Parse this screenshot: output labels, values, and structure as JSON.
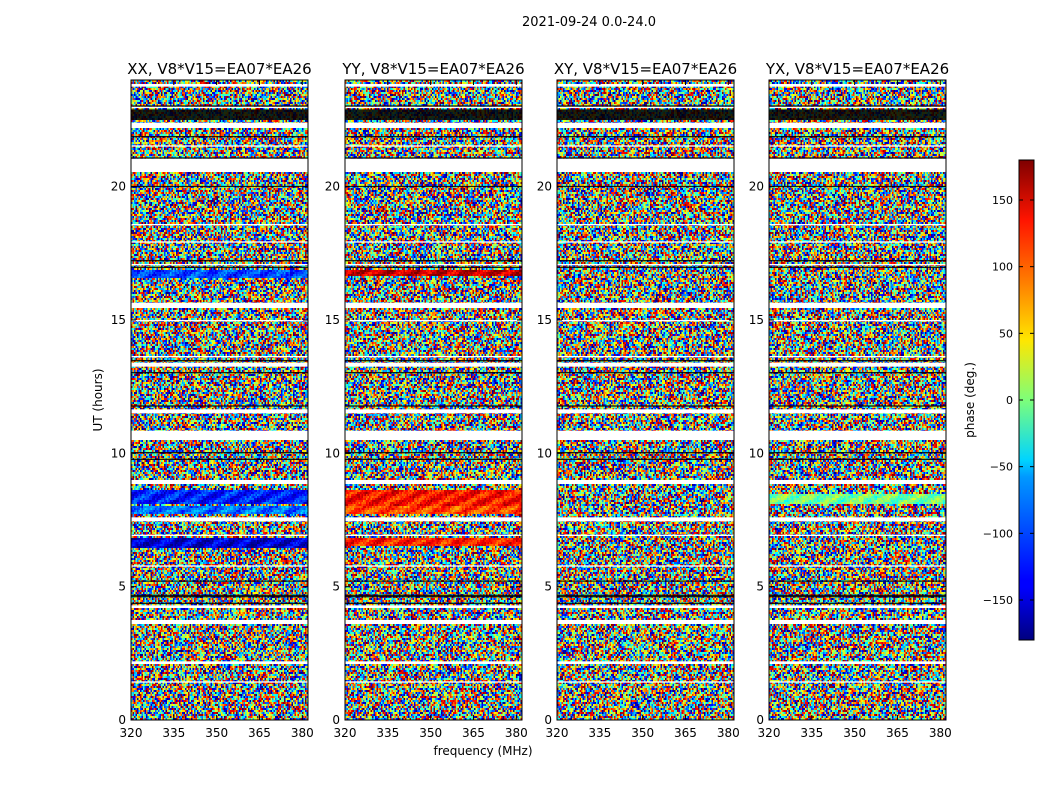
{
  "chart_data": {
    "type": "heatmap",
    "suptitle": "2021-09-24 0.0-24.0",
    "xlabel": "frequency (MHz)",
    "ylabel": "UT (hours)",
    "colorbar_label": "phase (deg.)",
    "colorbar_range": [
      -180,
      180
    ],
    "colorbar_ticks": [
      "−150",
      "−100",
      "−50",
      "0",
      "50",
      "100",
      "150"
    ],
    "colorbar_tick_values": [
      -150,
      -100,
      -50,
      0,
      50,
      100,
      150
    ],
    "x_range": [
      320,
      382
    ],
    "x_ticks": [
      "320",
      "335",
      "350",
      "365",
      "380"
    ],
    "x_tick_values": [
      320,
      335,
      350,
      365,
      380
    ],
    "y_range": [
      0,
      24
    ],
    "y_ticks": [
      "0",
      "5",
      "10",
      "15",
      "20"
    ],
    "y_tick_values": [
      0,
      5,
      10,
      15,
      20
    ],
    "colormap": "jet",
    "flagged_color": "#ffffff",
    "panels": [
      {
        "title": "XX, V8*V15=EA07*EA26",
        "coherent_bands": [
          {
            "ut_start": 16.6,
            "ut_end": 16.85,
            "phase": -110
          },
          {
            "ut_start": 8.1,
            "ut_end": 8.6,
            "phase": -125
          },
          {
            "ut_start": 7.75,
            "ut_end": 8.05,
            "phase": -95
          },
          {
            "ut_start": 6.45,
            "ut_end": 6.8,
            "phase": -150
          }
        ]
      },
      {
        "title": "YY, V8*V15=EA07*EA26",
        "coherent_bands": [
          {
            "ut_start": 16.65,
            "ut_end": 16.9,
            "phase": 155
          },
          {
            "ut_start": 8.0,
            "ut_end": 8.65,
            "phase": 130
          },
          {
            "ut_start": 7.75,
            "ut_end": 8.0,
            "phase": 110
          },
          {
            "ut_start": 6.5,
            "ut_end": 6.85,
            "phase": 125
          }
        ]
      },
      {
        "title": "XY, V8*V15=EA07*EA26",
        "coherent_bands": []
      },
      {
        "title": "YX, V8*V15=EA07*EA26",
        "coherent_bands": [
          {
            "ut_start": 8.1,
            "ut_end": 8.45,
            "phase": -5
          }
        ]
      }
    ],
    "flagged_ut": [
      [
        23.75,
        23.85
      ],
      [
        22.95,
        23.0
      ],
      [
        22.2,
        22.4
      ],
      [
        21.5,
        21.55
      ],
      [
        20.55,
        21.05
      ],
      [
        18.55,
        18.6
      ],
      [
        17.9,
        17.95
      ],
      [
        17.05,
        17.1
      ],
      [
        15.45,
        15.65
      ],
      [
        14.95,
        15.0
      ],
      [
        13.6,
        13.65
      ],
      [
        13.25,
        13.4
      ],
      [
        11.5,
        11.65
      ],
      [
        10.5,
        10.85
      ],
      [
        8.85,
        9.0
      ],
      [
        7.45,
        7.6
      ],
      [
        6.9,
        6.95
      ],
      [
        5.75,
        5.8
      ],
      [
        4.2,
        4.3
      ],
      [
        3.6,
        3.75
      ],
      [
        2.1,
        2.2
      ],
      [
        1.4,
        1.45
      ]
    ],
    "black_lines_ut": [
      [
        23.0,
        23.05
      ],
      [
        22.5,
        22.9
      ],
      [
        21.85,
        21.9
      ],
      [
        21.05,
        21.1
      ],
      [
        20.0,
        20.03
      ],
      [
        17.2,
        17.25
      ],
      [
        16.95,
        17.0
      ],
      [
        13.45,
        13.5
      ],
      [
        13.0,
        13.05
      ],
      [
        11.75,
        11.8
      ],
      [
        10.0,
        10.05
      ],
      [
        9.75,
        9.8
      ],
      [
        4.6,
        4.7
      ],
      [
        4.35,
        4.4
      ],
      [
        5.2,
        5.23
      ]
    ]
  }
}
